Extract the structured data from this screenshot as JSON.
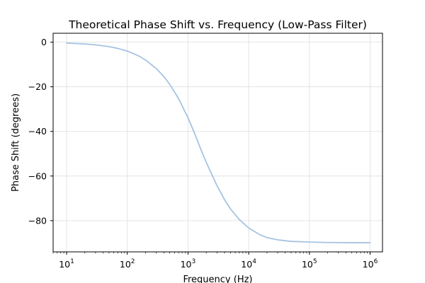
{
  "chart_data": {
    "type": "line",
    "title": "Theoretical Phase Shift vs. Frequency (Low-Pass Filter)",
    "xlabel": "Frequency (Hz)",
    "ylabel": "Phase Shift (degrees)",
    "xscale": "log",
    "xlim": [
      6,
      1600000
    ],
    "ylim": [
      -94,
      4
    ],
    "x_ticks": [
      {
        "base": "10",
        "exp": "1",
        "value": 10
      },
      {
        "base": "10",
        "exp": "2",
        "value": 100
      },
      {
        "base": "10",
        "exp": "3",
        "value": 1000
      },
      {
        "base": "10",
        "exp": "4",
        "value": 10000
      },
      {
        "base": "10",
        "exp": "5",
        "value": 100000
      },
      {
        "base": "10",
        "exp": "6",
        "value": 1000000
      }
    ],
    "y_ticks": [
      {
        "label": "0",
        "value": 0
      },
      {
        "label": "−20",
        "value": -20
      },
      {
        "label": "−40",
        "value": -40
      },
      {
        "label": "−60",
        "value": -60
      },
      {
        "label": "−80",
        "value": -80
      }
    ],
    "grid": true,
    "series": [
      {
        "color": "#a5c3e2",
        "x": [
          10,
          20,
          30,
          50,
          70,
          100,
          150,
          200,
          300,
          400,
          500,
          700,
          1000,
          1300,
          1600,
          2000,
          3000,
          4000,
          5000,
          7000,
          10000,
          15000,
          20000,
          30000,
          50000,
          100000,
          200000,
          500000,
          1000000
        ],
        "y": [
          -0.4,
          -0.8,
          -1.2,
          -2.0,
          -2.8,
          -4.0,
          -6.0,
          -8.0,
          -11.8,
          -15.4,
          -18.9,
          -25.3,
          -33.9,
          -41.2,
          -47.5,
          -53.9,
          -64.3,
          -70.6,
          -74.7,
          -79.5,
          -83.3,
          -86.2,
          -87.6,
          -88.6,
          -89.3,
          -89.6,
          -89.8,
          -89.9,
          -89.9
        ]
      }
    ]
  }
}
